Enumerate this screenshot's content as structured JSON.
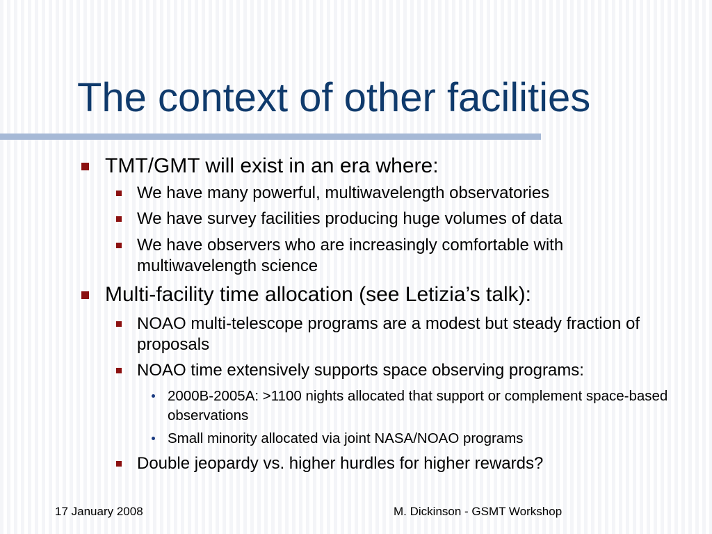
{
  "slide": {
    "title": "The context of other facilities",
    "bullets": [
      {
        "text": "TMT/GMT will exist in an era where:"
      },
      {
        "text": "We have many powerful, multiwavelength observatories"
      },
      {
        "text": "We have survey facilities producing huge volumes of data"
      },
      {
        "text": "We have observers who are increasingly comfortable with multiwavelength science"
      },
      {
        "text": "Multi-facility time allocation (see Letizia’s talk):"
      },
      {
        "text": "NOAO multi-telescope programs are a modest but steady fraction of proposals"
      },
      {
        "text": "NOAO time extensively supports space observing programs:"
      },
      {
        "text": "2000B-2005A:  >1100 nights allocated that support or complement space-based observations"
      },
      {
        "text": "Small minority allocated via joint NASA/NOAO programs"
      },
      {
        "text": "Double jeopardy vs. higher hurdles for higher rewards?"
      }
    ]
  },
  "footer": {
    "date": "17 January 2008",
    "author": "M. Dickinson - GSMT Workshop"
  },
  "colors": {
    "title": "#0f3a6c",
    "rule": "#a6b9d6",
    "square_bullet": "#8b1010",
    "dot_bullet": "#1a3a80"
  }
}
